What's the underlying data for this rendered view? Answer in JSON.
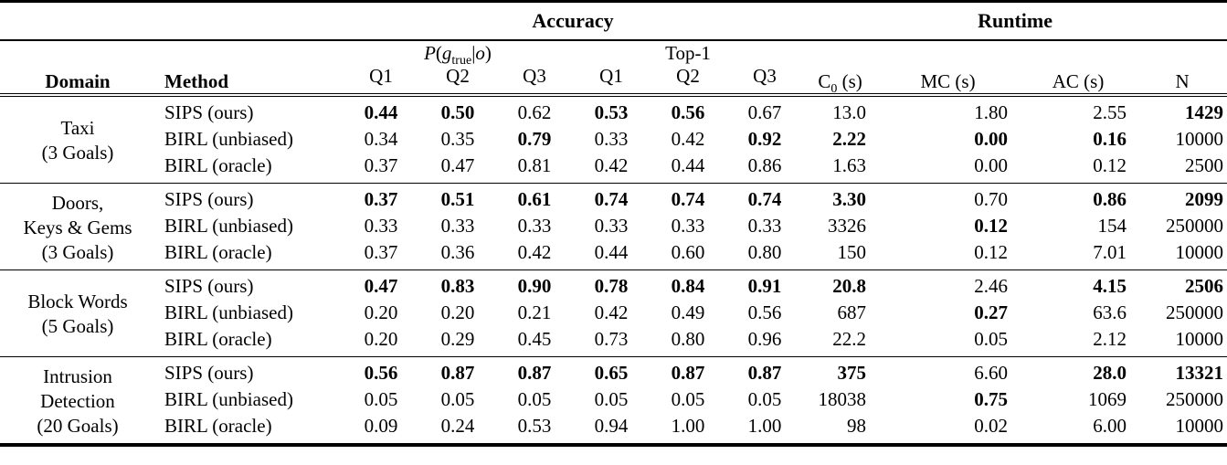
{
  "table": {
    "span_headers": {
      "accuracy": "Accuracy",
      "runtime": "Runtime"
    },
    "columns": {
      "domain": "Domain",
      "method": "Method",
      "p_parts": [
        {
          "t": "P"
        },
        {
          "t": "("
        },
        {
          "t": "g"
        },
        {
          "t": "true"
        },
        {
          "t": "|"
        },
        {
          "t": "o"
        },
        {
          "t": ")"
        }
      ],
      "top1": "Top-1",
      "q_labels": [
        "Q1",
        "Q2",
        "Q3",
        "Q1",
        "Q2",
        "Q3"
      ],
      "c0_parts": {
        "base": "C",
        "sub": "0",
        "unit": " (s)"
      },
      "mc": "MC (s)",
      "ac": "AC (s)",
      "n": "N"
    },
    "groups": [
      {
        "domain_lines": [
          "Taxi",
          "(3 Goals)"
        ],
        "rows": [
          {
            "method": "SIPS (ours)",
            "cells": [
              {
                "t": "0.44",
                "b": true
              },
              {
                "t": "0.50",
                "b": true
              },
              {
                "t": "0.62",
                "b": false
              },
              {
                "t": "0.53",
                "b": true
              },
              {
                "t": "0.56",
                "b": true
              },
              {
                "t": "0.67",
                "b": false
              },
              {
                "t": "13.0",
                "b": false
              },
              {
                "t": "1.80",
                "b": false
              },
              {
                "t": "2.55",
                "b": false
              },
              {
                "t": "1429",
                "b": true
              }
            ]
          },
          {
            "method": "BIRL (unbiased)",
            "cells": [
              {
                "t": "0.34",
                "b": false
              },
              {
                "t": "0.35",
                "b": false
              },
              {
                "t": "0.79",
                "b": true
              },
              {
                "t": "0.33",
                "b": false
              },
              {
                "t": "0.42",
                "b": false
              },
              {
                "t": "0.92",
                "b": true
              },
              {
                "t": "2.22",
                "b": true
              },
              {
                "t": "0.00",
                "b": true
              },
              {
                "t": "0.16",
                "b": true
              },
              {
                "t": "10000",
                "b": false
              }
            ]
          },
          {
            "method": "BIRL (oracle)",
            "cells": [
              {
                "t": "0.37",
                "b": false
              },
              {
                "t": "0.47",
                "b": false
              },
              {
                "t": "0.81",
                "b": false
              },
              {
                "t": "0.42",
                "b": false
              },
              {
                "t": "0.44",
                "b": false
              },
              {
                "t": "0.86",
                "b": false
              },
              {
                "t": "1.63",
                "b": false
              },
              {
                "t": "0.00",
                "b": false
              },
              {
                "t": "0.12",
                "b": false
              },
              {
                "t": "2500",
                "b": false
              }
            ]
          }
        ]
      },
      {
        "domain_lines": [
          "Doors,",
          "Keys & Gems",
          "(3 Goals)"
        ],
        "rows": [
          {
            "method": "SIPS (ours)",
            "cells": [
              {
                "t": "0.37",
                "b": true
              },
              {
                "t": "0.51",
                "b": true
              },
              {
                "t": "0.61",
                "b": true
              },
              {
                "t": "0.74",
                "b": true
              },
              {
                "t": "0.74",
                "b": true
              },
              {
                "t": "0.74",
                "b": true
              },
              {
                "t": "3.30",
                "b": true
              },
              {
                "t": "0.70",
                "b": false
              },
              {
                "t": "0.86",
                "b": true
              },
              {
                "t": "2099",
                "b": true
              }
            ]
          },
          {
            "method": "BIRL (unbiased)",
            "cells": [
              {
                "t": "0.33",
                "b": false
              },
              {
                "t": "0.33",
                "b": false
              },
              {
                "t": "0.33",
                "b": false
              },
              {
                "t": "0.33",
                "b": false
              },
              {
                "t": "0.33",
                "b": false
              },
              {
                "t": "0.33",
                "b": false
              },
              {
                "t": "3326",
                "b": false
              },
              {
                "t": "0.12",
                "b": true
              },
              {
                "t": "154",
                "b": false
              },
              {
                "t": "250000",
                "b": false
              }
            ]
          },
          {
            "method": "BIRL (oracle)",
            "cells": [
              {
                "t": "0.37",
                "b": false
              },
              {
                "t": "0.36",
                "b": false
              },
              {
                "t": "0.42",
                "b": false
              },
              {
                "t": "0.44",
                "b": false
              },
              {
                "t": "0.60",
                "b": false
              },
              {
                "t": "0.80",
                "b": false
              },
              {
                "t": "150",
                "b": false
              },
              {
                "t": "0.12",
                "b": false
              },
              {
                "t": "7.01",
                "b": false
              },
              {
                "t": "10000",
                "b": false
              }
            ]
          }
        ]
      },
      {
        "domain_lines": [
          "Block Words",
          "(5 Goals)"
        ],
        "rows": [
          {
            "method": "SIPS (ours)",
            "cells": [
              {
                "t": "0.47",
                "b": true
              },
              {
                "t": "0.83",
                "b": true
              },
              {
                "t": "0.90",
                "b": true
              },
              {
                "t": "0.78",
                "b": true
              },
              {
                "t": "0.84",
                "b": true
              },
              {
                "t": "0.91",
                "b": true
              },
              {
                "t": "20.8",
                "b": true
              },
              {
                "t": "2.46",
                "b": false
              },
              {
                "t": "4.15",
                "b": true
              },
              {
                "t": "2506",
                "b": true
              }
            ]
          },
          {
            "method": "BIRL (unbiased)",
            "cells": [
              {
                "t": "0.20",
                "b": false
              },
              {
                "t": "0.20",
                "b": false
              },
              {
                "t": "0.21",
                "b": false
              },
              {
                "t": "0.42",
                "b": false
              },
              {
                "t": "0.49",
                "b": false
              },
              {
                "t": "0.56",
                "b": false
              },
              {
                "t": "687",
                "b": false
              },
              {
                "t": "0.27",
                "b": true
              },
              {
                "t": "63.6",
                "b": false
              },
              {
                "t": "250000",
                "b": false
              }
            ]
          },
          {
            "method": "BIRL (oracle)",
            "cells": [
              {
                "t": "0.20",
                "b": false
              },
              {
                "t": "0.29",
                "b": false
              },
              {
                "t": "0.45",
                "b": false
              },
              {
                "t": "0.73",
                "b": false
              },
              {
                "t": "0.80",
                "b": false
              },
              {
                "t": "0.96",
                "b": false
              },
              {
                "t": "22.2",
                "b": false
              },
              {
                "t": "0.05",
                "b": false
              },
              {
                "t": "2.12",
                "b": false
              },
              {
                "t": "10000",
                "b": false
              }
            ]
          }
        ]
      },
      {
        "domain_lines": [
          "Intrusion",
          "Detection",
          "(20 Goals)"
        ],
        "rows": [
          {
            "method": "SIPS (ours)",
            "cells": [
              {
                "t": "0.56",
                "b": true
              },
              {
                "t": "0.87",
                "b": true
              },
              {
                "t": "0.87",
                "b": true
              },
              {
                "t": "0.65",
                "b": true
              },
              {
                "t": "0.87",
                "b": true
              },
              {
                "t": "0.87",
                "b": true
              },
              {
                "t": "375",
                "b": true
              },
              {
                "t": "6.60",
                "b": false
              },
              {
                "t": "28.0",
                "b": true
              },
              {
                "t": "13321",
                "b": true
              }
            ]
          },
          {
            "method": "BIRL (unbiased)",
            "cells": [
              {
                "t": "0.05",
                "b": false
              },
              {
                "t": "0.05",
                "b": false
              },
              {
                "t": "0.05",
                "b": false
              },
              {
                "t": "0.05",
                "b": false
              },
              {
                "t": "0.05",
                "b": false
              },
              {
                "t": "0.05",
                "b": false
              },
              {
                "t": "18038",
                "b": false
              },
              {
                "t": "0.75",
                "b": true
              },
              {
                "t": "1069",
                "b": false
              },
              {
                "t": "250000",
                "b": false
              }
            ]
          },
          {
            "method": "BIRL (oracle)",
            "cells": [
              {
                "t": "0.09",
                "b": false
              },
              {
                "t": "0.24",
                "b": false
              },
              {
                "t": "0.53",
                "b": false
              },
              {
                "t": "0.94",
                "b": false
              },
              {
                "t": "1.00",
                "b": false
              },
              {
                "t": "1.00",
                "b": false
              },
              {
                "t": "98",
                "b": false
              },
              {
                "t": "0.02",
                "b": false
              },
              {
                "t": "6.00",
                "b": false
              },
              {
                "t": "10000",
                "b": false
              }
            ]
          }
        ]
      }
    ]
  }
}
